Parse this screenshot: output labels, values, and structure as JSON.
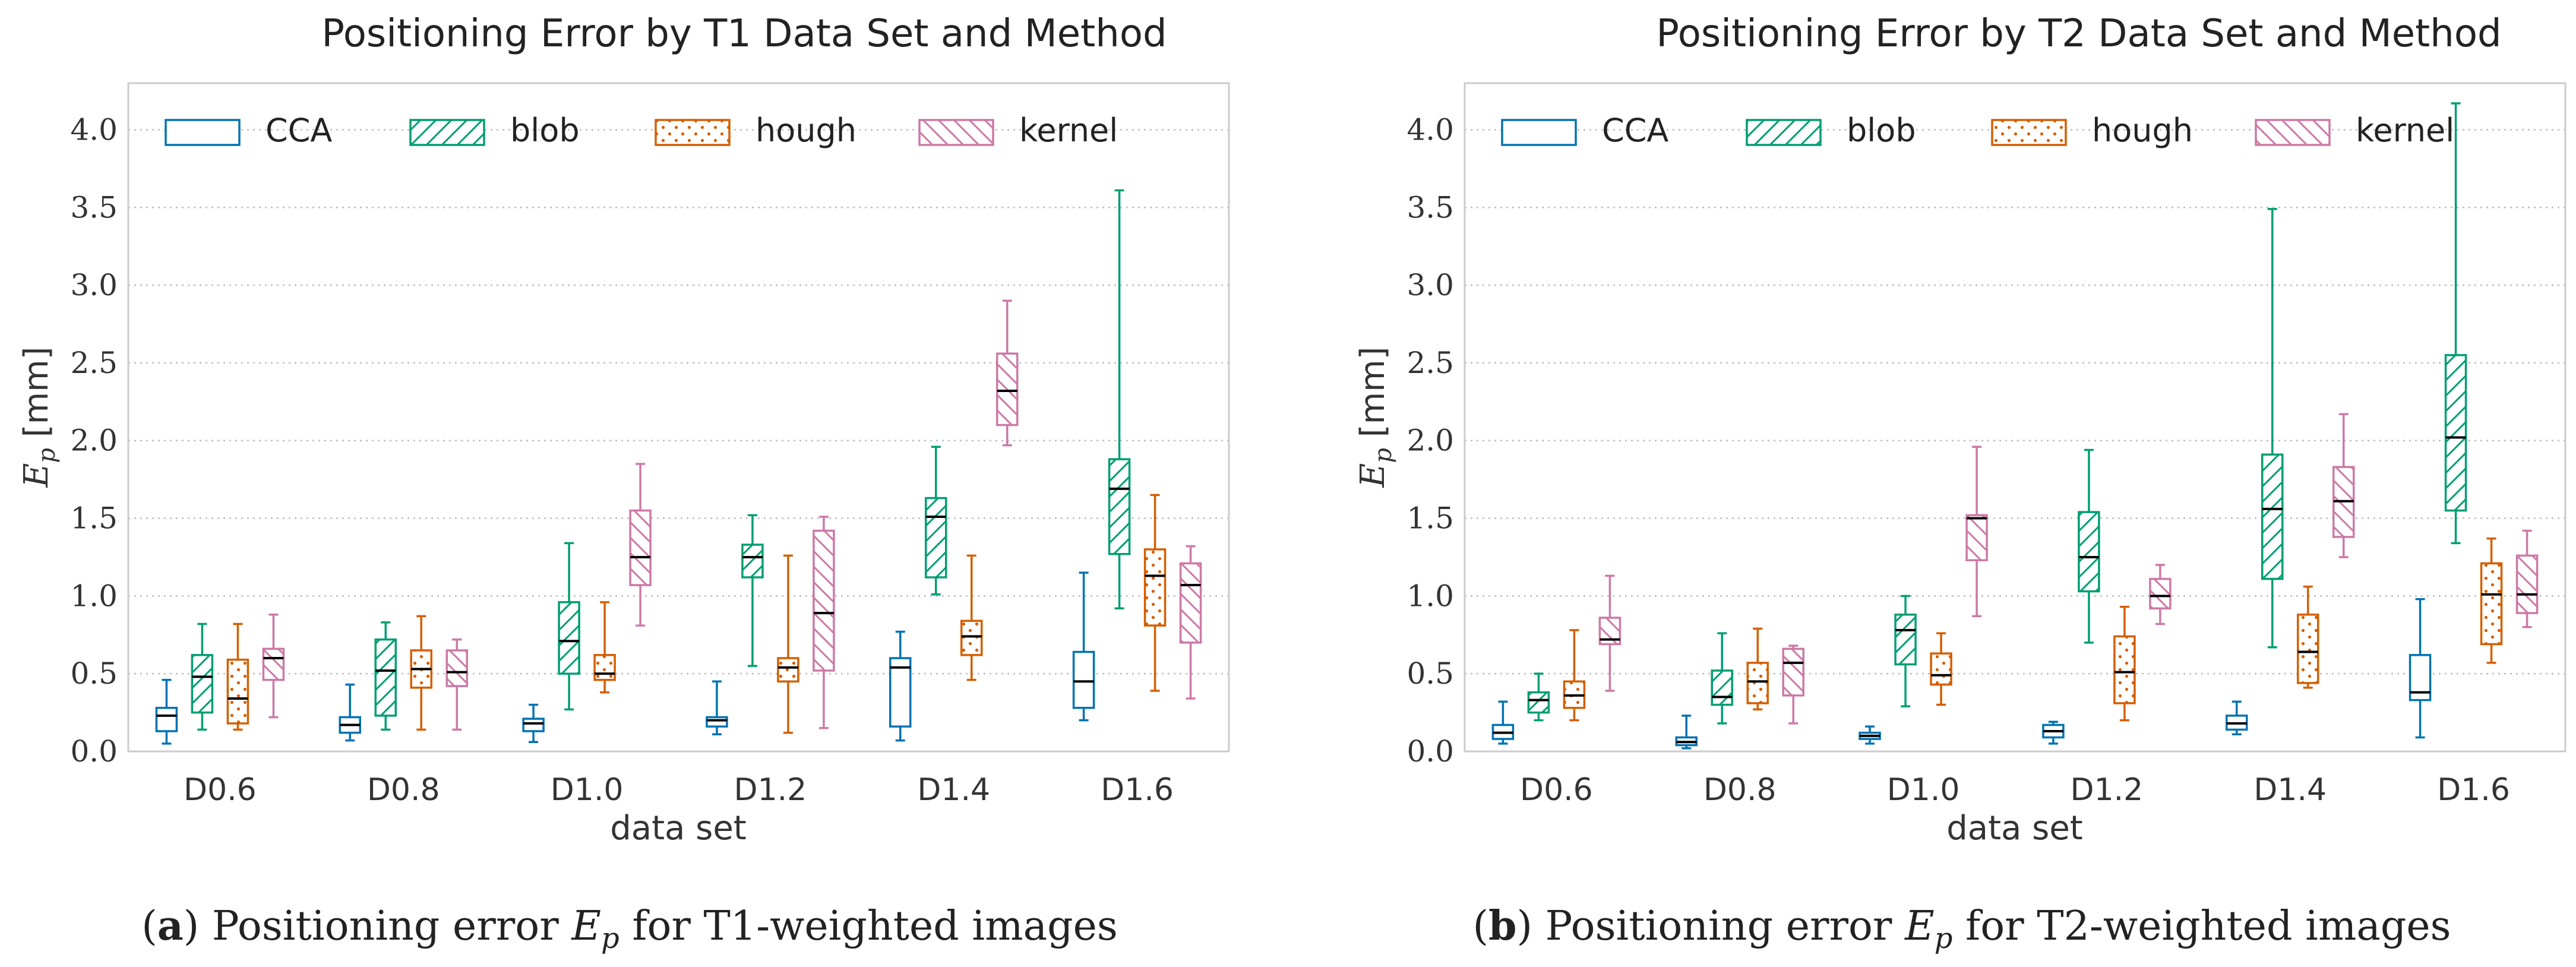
{
  "legend_entries": [
    "CCA",
    "blob",
    "hough",
    "kernel"
  ],
  "colors": {
    "CCA": "#0072B2",
    "blob": "#009E73",
    "hough": "#D55E00",
    "kernel": "#CC79A7",
    "median": "#000000",
    "grid": "#bdbdbd",
    "frame": "#cccccc"
  },
  "captions": [
    {
      "letter": "a",
      "pre": ") Positioning error ",
      "sym": "E",
      "sub": "p",
      "post": " for T1-weighted images"
    },
    {
      "letter": "b",
      "pre": ") Positioning error ",
      "sym": "E",
      "sub": "p",
      "post": " for T2-weighted images"
    }
  ],
  "chart_data": [
    {
      "type": "boxplot",
      "title": "Positioning Error by T1 Data Set and Method",
      "xlabel": "data set",
      "ylabel": "E_p [mm]",
      "ylim": [
        0,
        4.3
      ],
      "yticks": [
        "0.0",
        "0.5",
        "1.0",
        "1.5",
        "2.0",
        "2.5",
        "3.0",
        "3.5",
        "4.0"
      ],
      "grid": true,
      "legend": "top",
      "categories": [
        "D0.6",
        "D0.8",
        "D1.0",
        "D1.2",
        "D1.4",
        "D1.6"
      ],
      "series": [
        {
          "name": "CCA",
          "boxes": [
            {
              "min": 0.05,
              "q1": 0.13,
              "median": 0.23,
              "q3": 0.28,
              "max": 0.46
            },
            {
              "min": 0.07,
              "q1": 0.12,
              "median": 0.17,
              "q3": 0.22,
              "max": 0.43
            },
            {
              "min": 0.06,
              "q1": 0.13,
              "median": 0.18,
              "q3": 0.21,
              "max": 0.3
            },
            {
              "min": 0.11,
              "q1": 0.16,
              "median": 0.2,
              "q3": 0.22,
              "max": 0.45
            },
            {
              "min": 0.07,
              "q1": 0.16,
              "median": 0.54,
              "q3": 0.6,
              "max": 0.77
            },
            {
              "min": 0.2,
              "q1": 0.28,
              "median": 0.45,
              "q3": 0.64,
              "max": 1.15
            }
          ]
        },
        {
          "name": "blob",
          "boxes": [
            {
              "min": 0.14,
              "q1": 0.25,
              "median": 0.48,
              "q3": 0.62,
              "max": 0.82
            },
            {
              "min": 0.14,
              "q1": 0.23,
              "median": 0.52,
              "q3": 0.72,
              "max": 0.83
            },
            {
              "min": 0.27,
              "q1": 0.5,
              "median": 0.71,
              "q3": 0.96,
              "max": 1.34
            },
            {
              "min": 0.55,
              "q1": 1.12,
              "median": 1.25,
              "q3": 1.33,
              "max": 1.52
            },
            {
              "min": 1.01,
              "q1": 1.12,
              "median": 1.51,
              "q3": 1.63,
              "max": 1.96
            },
            {
              "min": 0.92,
              "q1": 1.27,
              "median": 1.69,
              "q3": 1.88,
              "max": 3.61
            }
          ]
        },
        {
          "name": "hough",
          "boxes": [
            {
              "min": 0.14,
              "q1": 0.18,
              "median": 0.34,
              "q3": 0.59,
              "max": 0.82
            },
            {
              "min": 0.14,
              "q1": 0.41,
              "median": 0.53,
              "q3": 0.65,
              "max": 0.87
            },
            {
              "min": 0.38,
              "q1": 0.46,
              "median": 0.5,
              "q3": 0.62,
              "max": 0.96
            },
            {
              "min": 0.12,
              "q1": 0.45,
              "median": 0.54,
              "q3": 0.6,
              "max": 1.26
            },
            {
              "min": 0.46,
              "q1": 0.62,
              "median": 0.74,
              "q3": 0.84,
              "max": 1.26
            },
            {
              "min": 0.39,
              "q1": 0.81,
              "median": 1.13,
              "q3": 1.3,
              "max": 1.65
            }
          ]
        },
        {
          "name": "kernel",
          "boxes": [
            {
              "min": 0.22,
              "q1": 0.46,
              "median": 0.6,
              "q3": 0.66,
              "max": 0.88
            },
            {
              "min": 0.14,
              "q1": 0.42,
              "median": 0.51,
              "q3": 0.65,
              "max": 0.72
            },
            {
              "min": 0.81,
              "q1": 1.07,
              "median": 1.25,
              "q3": 1.55,
              "max": 1.85
            },
            {
              "min": 0.15,
              "q1": 0.52,
              "median": 0.89,
              "q3": 1.42,
              "max": 1.51
            },
            {
              "min": 1.97,
              "q1": 2.1,
              "median": 2.32,
              "q3": 2.56,
              "max": 2.9
            },
            {
              "min": 0.34,
              "q1": 0.7,
              "median": 1.07,
              "q3": 1.21,
              "max": 1.32
            }
          ]
        }
      ]
    },
    {
      "type": "boxplot",
      "title": "Positioning Error by T2 Data Set and Method",
      "xlabel": "data set",
      "ylabel": "E_p [mm]",
      "ylim": [
        0,
        4.3
      ],
      "yticks": [
        "0.0",
        "0.5",
        "1.0",
        "1.5",
        "2.0",
        "2.5",
        "3.0",
        "3.5",
        "4.0"
      ],
      "grid": true,
      "legend": "top",
      "categories": [
        "D0.6",
        "D0.8",
        "D1.0",
        "D1.2",
        "D1.4",
        "D1.6"
      ],
      "series": [
        {
          "name": "CCA",
          "boxes": [
            {
              "min": 0.05,
              "q1": 0.08,
              "median": 0.12,
              "q3": 0.17,
              "max": 0.32
            },
            {
              "min": 0.02,
              "q1": 0.04,
              "median": 0.06,
              "q3": 0.09,
              "max": 0.23
            },
            {
              "min": 0.05,
              "q1": 0.08,
              "median": 0.1,
              "q3": 0.12,
              "max": 0.16
            },
            {
              "min": 0.05,
              "q1": 0.09,
              "median": 0.13,
              "q3": 0.17,
              "max": 0.19
            },
            {
              "min": 0.11,
              "q1": 0.14,
              "median": 0.18,
              "q3": 0.23,
              "max": 0.32
            },
            {
              "min": 0.09,
              "q1": 0.33,
              "median": 0.38,
              "q3": 0.62,
              "max": 0.98
            }
          ]
        },
        {
          "name": "blob",
          "boxes": [
            {
              "min": 0.2,
              "q1": 0.25,
              "median": 0.33,
              "q3": 0.38,
              "max": 0.5
            },
            {
              "min": 0.18,
              "q1": 0.3,
              "median": 0.35,
              "q3": 0.52,
              "max": 0.76
            },
            {
              "min": 0.29,
              "q1": 0.56,
              "median": 0.78,
              "q3": 0.88,
              "max": 1.0
            },
            {
              "min": 0.7,
              "q1": 1.03,
              "median": 1.25,
              "q3": 1.54,
              "max": 1.94
            },
            {
              "min": 0.67,
              "q1": 1.11,
              "median": 1.56,
              "q3": 1.91,
              "max": 3.49
            },
            {
              "min": 1.34,
              "q1": 1.55,
              "median": 2.02,
              "q3": 2.55,
              "max": 4.17
            }
          ]
        },
        {
          "name": "hough",
          "boxes": [
            {
              "min": 0.2,
              "q1": 0.28,
              "median": 0.36,
              "q3": 0.45,
              "max": 0.78
            },
            {
              "min": 0.27,
              "q1": 0.31,
              "median": 0.45,
              "q3": 0.57,
              "max": 0.79
            },
            {
              "min": 0.3,
              "q1": 0.43,
              "median": 0.49,
              "q3": 0.63,
              "max": 0.76
            },
            {
              "min": 0.2,
              "q1": 0.31,
              "median": 0.51,
              "q3": 0.74,
              "max": 0.93
            },
            {
              "min": 0.41,
              "q1": 0.44,
              "median": 0.64,
              "q3": 0.88,
              "max": 1.06
            },
            {
              "min": 0.57,
              "q1": 0.69,
              "median": 1.01,
              "q3": 1.21,
              "max": 1.37
            }
          ]
        },
        {
          "name": "kernel",
          "boxes": [
            {
              "min": 0.39,
              "q1": 0.69,
              "median": 0.72,
              "q3": 0.86,
              "max": 1.13
            },
            {
              "min": 0.18,
              "q1": 0.36,
              "median": 0.57,
              "q3": 0.66,
              "max": 0.68
            },
            {
              "min": 0.87,
              "q1": 1.23,
              "median": 1.5,
              "q3": 1.52,
              "max": 1.96
            },
            {
              "min": 0.82,
              "q1": 0.92,
              "median": 1.0,
              "q3": 1.11,
              "max": 1.2
            },
            {
              "min": 1.25,
              "q1": 1.38,
              "median": 1.61,
              "q3": 1.83,
              "max": 2.17
            },
            {
              "min": 0.8,
              "q1": 0.89,
              "median": 1.01,
              "q3": 1.26,
              "max": 1.42
            }
          ]
        }
      ]
    }
  ]
}
